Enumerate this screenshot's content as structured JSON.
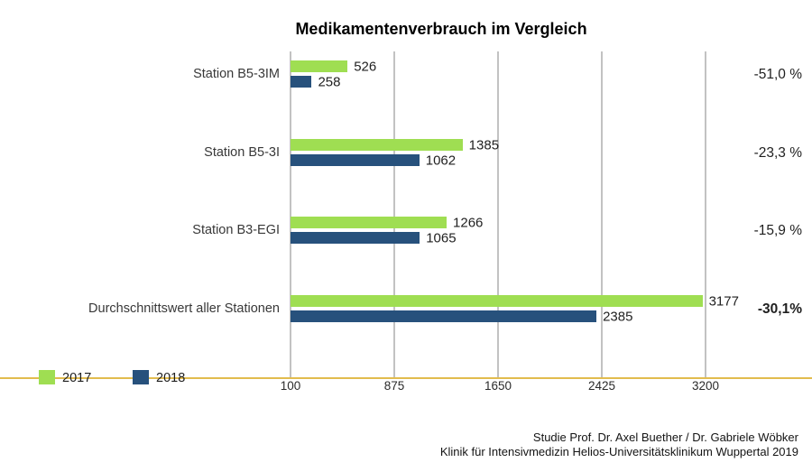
{
  "title": "Medikamentenverbrauch im Vergleich",
  "footer": {
    "line1": "Studie Prof. Dr. Axel Buether / Dr. Gabriele Wöbker",
    "line2": "Klinik für Intensivmedizin Helios-Universitätsklinikum Wuppertal 2019"
  },
  "colors": {
    "series_2017": "#9fde52",
    "series_2018": "#27517c",
    "axis_line": "#e2bc4e",
    "gridline": "#c2c2c2"
  },
  "chart_data": {
    "type": "bar",
    "orientation": "horizontal",
    "title": "Medikamentenverbrauch im Vergleich",
    "categories": [
      "Station B5-3IM",
      "Station B5-3I",
      "Station B3-EGI",
      "Durchschnittswert aller Stationen"
    ],
    "series": [
      {
        "name": "2017",
        "color": "#9fde52",
        "values": [
          526,
          1385,
          1266,
          3177
        ]
      },
      {
        "name": "2018",
        "color": "#27517c",
        "values": [
          258,
          1062,
          1065,
          2385
        ]
      }
    ],
    "annotations": [
      "-51,0 %",
      "-23,3 %",
      "-15,9 %",
      "-30,1%"
    ],
    "annotation_bold": [
      false,
      false,
      false,
      true
    ],
    "xticks": [
      100,
      875,
      1650,
      2425,
      3200
    ],
    "xlim": [
      100,
      3975
    ],
    "grid": "vertical-gridlines-at-ticks",
    "legend_position": "bottom-left",
    "value_labels": "outside-end"
  }
}
